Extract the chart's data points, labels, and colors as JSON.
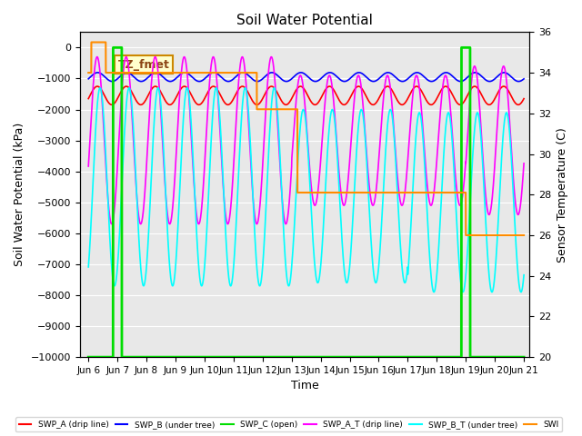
{
  "title": "Soil Water Potential",
  "ylabel_left": "Soil Water Potential (kPa)",
  "ylabel_right": "Sensor Temperature (C)",
  "xlabel": "Time",
  "xlim_days": [
    5.7,
    21.2
  ],
  "ylim_left": [
    -10000,
    500
  ],
  "ylim_right": [
    20,
    36
  ],
  "yticks_left": [
    0,
    -1000,
    -2000,
    -3000,
    -4000,
    -5000,
    -6000,
    -7000,
    -8000,
    -9000,
    -10000
  ],
  "xtick_labels": [
    "Jun 6",
    "Jun 7",
    "Jun 8",
    "Jun 9",
    "Jun 10",
    "Jun 11",
    "Jun 12",
    "Jun 13",
    "Jun 14",
    "Jun 15",
    "Jun 16",
    "Jun 17",
    "Jun 18",
    "Jun 19",
    "Jun 20",
    "Jun 21"
  ],
  "xtick_positions": [
    6,
    7,
    8,
    9,
    10,
    11,
    12,
    13,
    14,
    15,
    16,
    17,
    18,
    19,
    20,
    21
  ],
  "bg_color": "#e8e8e8",
  "swp_b_color": "#0000ff",
  "swp_c_color": "#00dd00",
  "swp_a_t_color": "#ff00ff",
  "swp_b_t_color": "#00ffff",
  "swp_temp_color": "#ff8c00",
  "swp_a_color": "#ff0000",
  "legend_labels": [
    "SWP_A (drip line)",
    "SWP_B (under tree)",
    "SWP_C (open)",
    "SWP_A_T (drip line)",
    "SWP_B_T (under tree)",
    "SWI"
  ],
  "legend_colors": [
    "#ff0000",
    "#0000ff",
    "#00dd00",
    "#ff00ff",
    "#00ffff",
    "#ff8c00"
  ]
}
